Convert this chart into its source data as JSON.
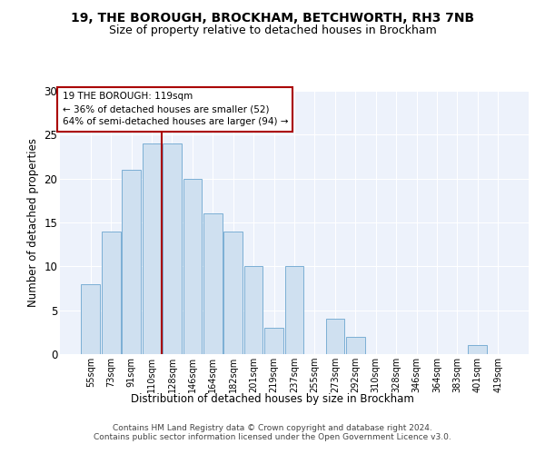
{
  "title1": "19, THE BOROUGH, BROCKHAM, BETCHWORTH, RH3 7NB",
  "title2": "Size of property relative to detached houses in Brockham",
  "xlabel": "Distribution of detached houses by size in Brockham",
  "ylabel": "Number of detached properties",
  "categories": [
    "55sqm",
    "73sqm",
    "91sqm",
    "110sqm",
    "128sqm",
    "146sqm",
    "164sqm",
    "182sqm",
    "201sqm",
    "219sqm",
    "237sqm",
    "255sqm",
    "273sqm",
    "292sqm",
    "310sqm",
    "328sqm",
    "346sqm",
    "364sqm",
    "383sqm",
    "401sqm",
    "419sqm"
  ],
  "values": [
    8,
    14,
    21,
    24,
    24,
    20,
    16,
    14,
    10,
    3,
    10,
    0,
    4,
    2,
    0,
    0,
    0,
    0,
    0,
    1,
    0
  ],
  "bar_facecolor": "#cfe0f0",
  "bar_edgecolor": "#7bafd4",
  "vline_x": 3.5,
  "vline_color": "#aa0000",
  "annotation_line1": "19 THE BOROUGH: 119sqm",
  "annotation_line2": "← 36% of detached houses are smaller (52)",
  "annotation_line3": "64% of semi-detached houses are larger (94) →",
  "annotation_box_facecolor": "#ffffff",
  "annotation_box_edgecolor": "#aa0000",
  "ylim": [
    0,
    30
  ],
  "yticks": [
    0,
    5,
    10,
    15,
    20,
    25,
    30
  ],
  "footer_line1": "Contains HM Land Registry data © Crown copyright and database right 2024.",
  "footer_line2": "Contains public sector information licensed under the Open Government Licence v3.0.",
  "bg_color": "#edf2fb",
  "grid_color": "#ffffff",
  "title1_fontsize": 10,
  "title2_fontsize": 9
}
